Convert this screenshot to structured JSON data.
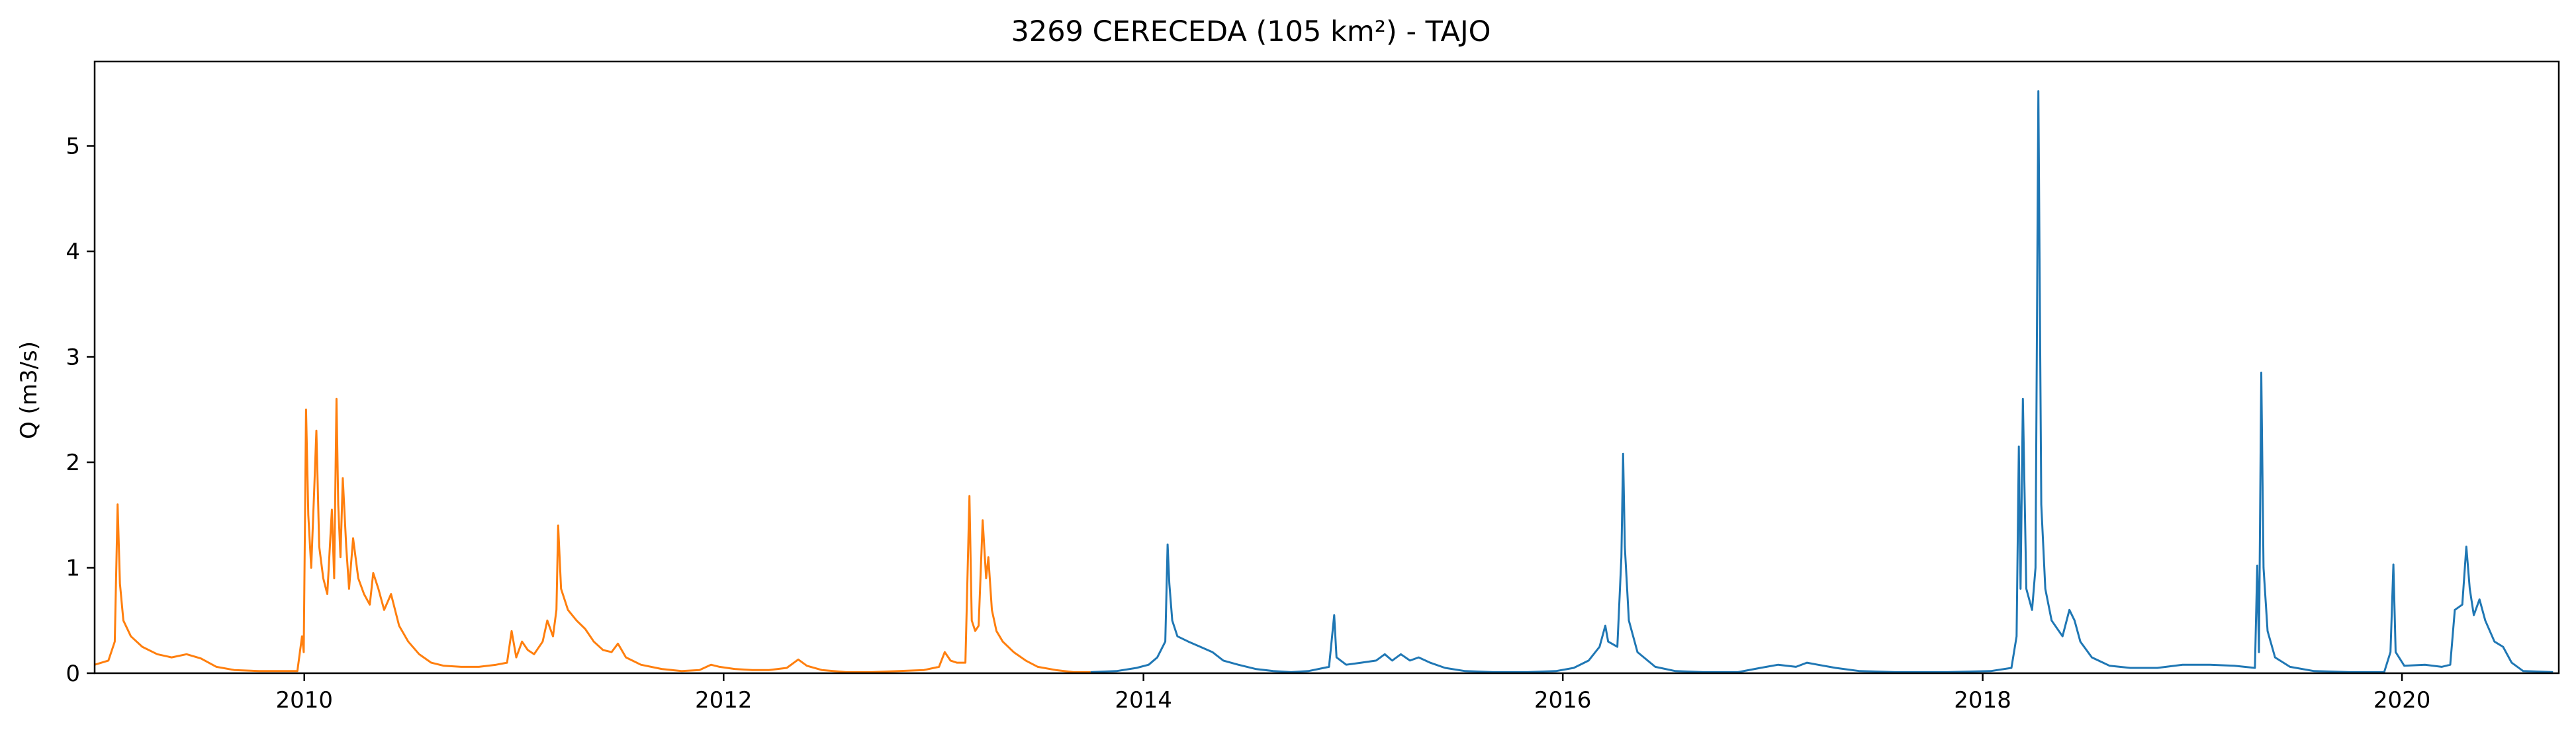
{
  "chart_data": {
    "type": "line",
    "title": "3269 CERECEDA (105 km²) - TAJO",
    "xlabel": "",
    "ylabel": "Q (m3/s)",
    "xlim": [
      "2009-01-01",
      "2020-09-30"
    ],
    "ylim": [
      0,
      5.8
    ],
    "x_ticks": [
      "2010",
      "2012",
      "2014",
      "2016",
      "2018",
      "2020"
    ],
    "y_ticks": [
      "0",
      "1",
      "2",
      "3",
      "4",
      "5"
    ],
    "grid": false,
    "legend": "none",
    "series": [
      {
        "color": "#ff7f0e",
        "points": [
          [
            "2009-01-01",
            0.08
          ],
          [
            "2009-01-25",
            0.12
          ],
          [
            "2009-02-05",
            0.3
          ],
          [
            "2009-02-10",
            1.6
          ],
          [
            "2009-02-14",
            0.85
          ],
          [
            "2009-02-20",
            0.5
          ],
          [
            "2009-03-05",
            0.35
          ],
          [
            "2009-03-25",
            0.25
          ],
          [
            "2009-04-20",
            0.18
          ],
          [
            "2009-05-15",
            0.15
          ],
          [
            "2009-06-10",
            0.18
          ],
          [
            "2009-07-05",
            0.14
          ],
          [
            "2009-08-01",
            0.06
          ],
          [
            "2009-09-01",
            0.03
          ],
          [
            "2009-10-15",
            0.02
          ],
          [
            "2009-12-20",
            0.02
          ],
          [
            "2009-12-28",
            0.35
          ],
          [
            "2009-12-31",
            0.2
          ],
          [
            "2010-01-04",
            2.5
          ],
          [
            "2010-01-08",
            1.5
          ],
          [
            "2010-01-13",
            1.0
          ],
          [
            "2010-01-18",
            1.7
          ],
          [
            "2010-01-22",
            2.3
          ],
          [
            "2010-01-27",
            1.2
          ],
          [
            "2010-02-03",
            0.9
          ],
          [
            "2010-02-10",
            0.75
          ],
          [
            "2010-02-18",
            1.55
          ],
          [
            "2010-02-22",
            0.9
          ],
          [
            "2010-02-26",
            2.6
          ],
          [
            "2010-03-01",
            1.6
          ],
          [
            "2010-03-05",
            1.1
          ],
          [
            "2010-03-09",
            1.85
          ],
          [
            "2010-03-15",
            1.2
          ],
          [
            "2010-03-20",
            0.8
          ],
          [
            "2010-03-27",
            1.28
          ],
          [
            "2010-04-05",
            0.9
          ],
          [
            "2010-04-15",
            0.75
          ],
          [
            "2010-04-25",
            0.65
          ],
          [
            "2010-05-01",
            0.95
          ],
          [
            "2010-05-10",
            0.8
          ],
          [
            "2010-05-20",
            0.6
          ],
          [
            "2010-06-01",
            0.75
          ],
          [
            "2010-06-15",
            0.45
          ],
          [
            "2010-07-01",
            0.3
          ],
          [
            "2010-07-20",
            0.18
          ],
          [
            "2010-08-10",
            0.1
          ],
          [
            "2010-09-01",
            0.07
          ],
          [
            "2010-10-01",
            0.06
          ],
          [
            "2010-11-01",
            0.06
          ],
          [
            "2010-12-01",
            0.08
          ],
          [
            "2010-12-20",
            0.1
          ],
          [
            "2010-12-28",
            0.4
          ],
          [
            "2011-01-05",
            0.15
          ],
          [
            "2011-01-15",
            0.3
          ],
          [
            "2011-01-25",
            0.22
          ],
          [
            "2011-02-05",
            0.18
          ],
          [
            "2011-02-20",
            0.3
          ],
          [
            "2011-02-28",
            0.5
          ],
          [
            "2011-03-10",
            0.35
          ],
          [
            "2011-03-16",
            0.6
          ],
          [
            "2011-03-19",
            1.4
          ],
          [
            "2011-03-24",
            0.8
          ],
          [
            "2011-04-05",
            0.6
          ],
          [
            "2011-04-20",
            0.5
          ],
          [
            "2011-05-05",
            0.42
          ],
          [
            "2011-05-20",
            0.3
          ],
          [
            "2011-06-05",
            0.22
          ],
          [
            "2011-06-20",
            0.2
          ],
          [
            "2011-07-01",
            0.28
          ],
          [
            "2011-07-15",
            0.15
          ],
          [
            "2011-08-10",
            0.08
          ],
          [
            "2011-09-15",
            0.04
          ],
          [
            "2011-10-20",
            0.02
          ],
          [
            "2011-11-20",
            0.03
          ],
          [
            "2011-12-10",
            0.08
          ],
          [
            "2011-12-25",
            0.06
          ],
          [
            "2012-01-20",
            0.04
          ],
          [
            "2012-02-20",
            0.03
          ],
          [
            "2012-03-20",
            0.03
          ],
          [
            "2012-04-20",
            0.05
          ],
          [
            "2012-05-10",
            0.13
          ],
          [
            "2012-05-25",
            0.07
          ],
          [
            "2012-06-20",
            0.03
          ],
          [
            "2012-08-01",
            0.01
          ],
          [
            "2012-09-15",
            0.01
          ],
          [
            "2012-11-01",
            0.02
          ],
          [
            "2012-12-15",
            0.03
          ],
          [
            "2013-01-10",
            0.06
          ],
          [
            "2013-01-20",
            0.2
          ],
          [
            "2013-01-30",
            0.12
          ],
          [
            "2013-02-10",
            0.1
          ],
          [
            "2013-02-25",
            0.1
          ],
          [
            "2013-03-04",
            1.68
          ],
          [
            "2013-03-08",
            0.5
          ],
          [
            "2013-03-14",
            0.4
          ],
          [
            "2013-03-20",
            0.45
          ],
          [
            "2013-03-27",
            1.45
          ],
          [
            "2013-04-02",
            0.9
          ],
          [
            "2013-04-06",
            1.1
          ],
          [
            "2013-04-12",
            0.6
          ],
          [
            "2013-04-20",
            0.4
          ],
          [
            "2013-05-01",
            0.3
          ],
          [
            "2013-05-20",
            0.2
          ],
          [
            "2013-06-10",
            0.12
          ],
          [
            "2013-07-01",
            0.06
          ],
          [
            "2013-08-01",
            0.03
          ],
          [
            "2013-09-01",
            0.01
          ],
          [
            "2013-10-01",
            0.01
          ]
        ]
      },
      {
        "color": "#1f77b4",
        "points": [
          [
            "2013-10-01",
            0.01
          ],
          [
            "2013-11-15",
            0.02
          ],
          [
            "2013-12-20",
            0.05
          ],
          [
            "2014-01-10",
            0.08
          ],
          [
            "2014-01-25",
            0.15
          ],
          [
            "2014-02-08",
            0.3
          ],
          [
            "2014-02-12",
            1.22
          ],
          [
            "2014-02-15",
            0.85
          ],
          [
            "2014-02-20",
            0.5
          ],
          [
            "2014-03-01",
            0.35
          ],
          [
            "2014-03-20",
            0.3
          ],
          [
            "2014-04-10",
            0.25
          ],
          [
            "2014-05-01",
            0.2
          ],
          [
            "2014-05-20",
            0.12
          ],
          [
            "2014-06-15",
            0.08
          ],
          [
            "2014-07-15",
            0.04
          ],
          [
            "2014-08-15",
            0.02
          ],
          [
            "2014-09-15",
            0.01
          ],
          [
            "2014-10-15",
            0.02
          ],
          [
            "2014-11-20",
            0.06
          ],
          [
            "2014-11-29",
            0.55
          ],
          [
            "2014-12-03",
            0.15
          ],
          [
            "2014-12-20",
            0.08
          ],
          [
            "2015-01-15",
            0.1
          ],
          [
            "2015-02-10",
            0.12
          ],
          [
            "2015-02-25",
            0.18
          ],
          [
            "2015-03-10",
            0.12
          ],
          [
            "2015-03-25",
            0.18
          ],
          [
            "2015-04-10",
            0.12
          ],
          [
            "2015-04-25",
            0.15
          ],
          [
            "2015-05-15",
            0.1
          ],
          [
            "2015-06-10",
            0.05
          ],
          [
            "2015-07-15",
            0.02
          ],
          [
            "2015-09-01",
            0.01
          ],
          [
            "2015-11-01",
            0.01
          ],
          [
            "2015-12-20",
            0.02
          ],
          [
            "2016-01-20",
            0.05
          ],
          [
            "2016-02-15",
            0.12
          ],
          [
            "2016-03-05",
            0.25
          ],
          [
            "2016-03-15",
            0.45
          ],
          [
            "2016-03-20",
            0.3
          ],
          [
            "2016-04-05",
            0.25
          ],
          [
            "2016-04-12",
            1.1
          ],
          [
            "2016-04-15",
            2.08
          ],
          [
            "2016-04-18",
            1.2
          ],
          [
            "2016-04-25",
            0.5
          ],
          [
            "2016-05-10",
            0.2
          ],
          [
            "2016-06-10",
            0.06
          ],
          [
            "2016-07-15",
            0.02
          ],
          [
            "2016-09-01",
            0.01
          ],
          [
            "2016-11-01",
            0.01
          ],
          [
            "2016-12-10",
            0.05
          ],
          [
            "2017-01-10",
            0.08
          ],
          [
            "2017-02-10",
            0.06
          ],
          [
            "2017-03-01",
            0.1
          ],
          [
            "2017-03-20",
            0.08
          ],
          [
            "2017-04-20",
            0.05
          ],
          [
            "2017-06-01",
            0.02
          ],
          [
            "2017-08-01",
            0.01
          ],
          [
            "2017-11-01",
            0.01
          ],
          [
            "2018-01-15",
            0.02
          ],
          [
            "2018-02-20",
            0.05
          ],
          [
            "2018-03-01",
            0.35
          ],
          [
            "2018-03-05",
            2.15
          ],
          [
            "2018-03-08",
            0.8
          ],
          [
            "2018-03-12",
            2.6
          ],
          [
            "2018-03-18",
            0.8
          ],
          [
            "2018-03-28",
            0.6
          ],
          [
            "2018-04-03",
            1.0
          ],
          [
            "2018-04-08",
            5.52
          ],
          [
            "2018-04-13",
            1.6
          ],
          [
            "2018-04-20",
            0.8
          ],
          [
            "2018-05-01",
            0.5
          ],
          [
            "2018-05-20",
            0.35
          ],
          [
            "2018-06-01",
            0.6
          ],
          [
            "2018-06-10",
            0.5
          ],
          [
            "2018-06-20",
            0.3
          ],
          [
            "2018-07-10",
            0.15
          ],
          [
            "2018-08-10",
            0.07
          ],
          [
            "2018-09-15",
            0.05
          ],
          [
            "2018-11-01",
            0.05
          ],
          [
            "2018-12-15",
            0.08
          ],
          [
            "2019-02-01",
            0.08
          ],
          [
            "2019-03-15",
            0.07
          ],
          [
            "2019-04-20",
            0.05
          ],
          [
            "2019-04-24",
            1.02
          ],
          [
            "2019-04-27",
            0.2
          ],
          [
            "2019-05-01",
            2.85
          ],
          [
            "2019-05-05",
            1.0
          ],
          [
            "2019-05-12",
            0.4
          ],
          [
            "2019-05-25",
            0.15
          ],
          [
            "2019-06-20",
            0.06
          ],
          [
            "2019-08-01",
            0.02
          ],
          [
            "2019-10-01",
            0.01
          ],
          [
            "2019-12-01",
            0.01
          ],
          [
            "2019-12-12",
            0.2
          ],
          [
            "2019-12-17",
            1.03
          ],
          [
            "2019-12-21",
            0.2
          ],
          [
            "2020-01-05",
            0.07
          ],
          [
            "2020-02-10",
            0.08
          ],
          [
            "2020-03-10",
            0.06
          ],
          [
            "2020-03-25",
            0.08
          ],
          [
            "2020-04-02",
            0.6
          ],
          [
            "2020-04-15",
            0.65
          ],
          [
            "2020-04-22",
            1.2
          ],
          [
            "2020-04-28",
            0.8
          ],
          [
            "2020-05-05",
            0.55
          ],
          [
            "2020-05-15",
            0.7
          ],
          [
            "2020-05-25",
            0.5
          ],
          [
            "2020-06-10",
            0.3
          ],
          [
            "2020-06-25",
            0.25
          ],
          [
            "2020-07-10",
            0.1
          ],
          [
            "2020-07-30",
            0.02
          ],
          [
            "2020-09-20",
            0.01
          ]
        ]
      }
    ]
  }
}
